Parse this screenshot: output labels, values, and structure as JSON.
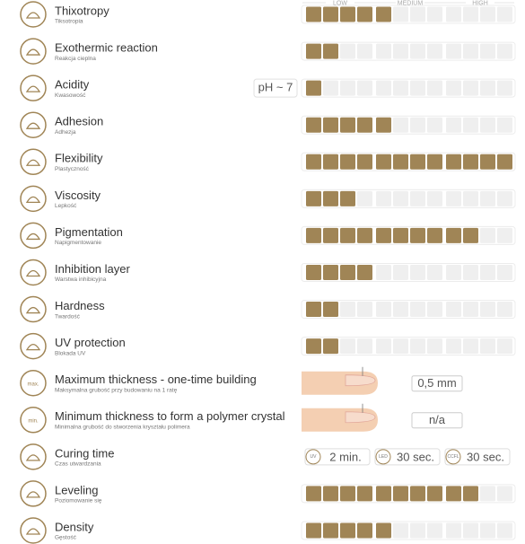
{
  "scale_header": [
    "LOW",
    "MEDIUM",
    "HIGH"
  ],
  "rows": [
    {
      "title": "Thixotropy",
      "subtitle": "Tiksotropia",
      "level": 5
    },
    {
      "title": "Exothermic reaction",
      "subtitle": "Reakcja cieplna",
      "level": 2
    },
    {
      "title": "Acidity",
      "subtitle": "Kwasowość",
      "level": 1,
      "note": "pH ~ 7"
    },
    {
      "title": "Adhesion",
      "subtitle": "Adhezja",
      "level": 5
    },
    {
      "title": "Flexibility",
      "subtitle": "Plastyczność",
      "level": 12
    },
    {
      "title": "Viscosity",
      "subtitle": "Lepkość",
      "level": 3
    },
    {
      "title": "Pigmentation",
      "subtitle": "Napigmentowanie",
      "level": 10
    },
    {
      "title": "Inhibition layer",
      "subtitle": "Warstwa inhibicyjna",
      "level": 4
    },
    {
      "title": "Hardness",
      "subtitle": "Twardość",
      "level": 2
    },
    {
      "title": "UV protection",
      "subtitle": "Blokada UV",
      "level": 2
    },
    {
      "title": "Maximum thickness - one-time building",
      "subtitle": "Maksymalna grubość przy budowaniu na 1 ratę",
      "icon_label": "max.",
      "value": "0,5 mm"
    },
    {
      "title": "Minimum thickness to form a polymer crystal",
      "subtitle": "Minimalna grubość do stworzenia kryształu polimera",
      "icon_label": "min.",
      "value": "n/a"
    },
    {
      "title": "Curing time",
      "subtitle": "Czas utwardzania",
      "times": [
        {
          "lamp": "UV",
          "time": "2 min."
        },
        {
          "lamp": "LED",
          "time": "30 sec."
        },
        {
          "lamp": "CCFL",
          "time": "30 sec."
        }
      ]
    },
    {
      "title": "Leveling",
      "subtitle": "Poziomowanie się",
      "level": 10
    },
    {
      "title": "Density",
      "subtitle": "Gęstość",
      "level": 5
    }
  ]
}
